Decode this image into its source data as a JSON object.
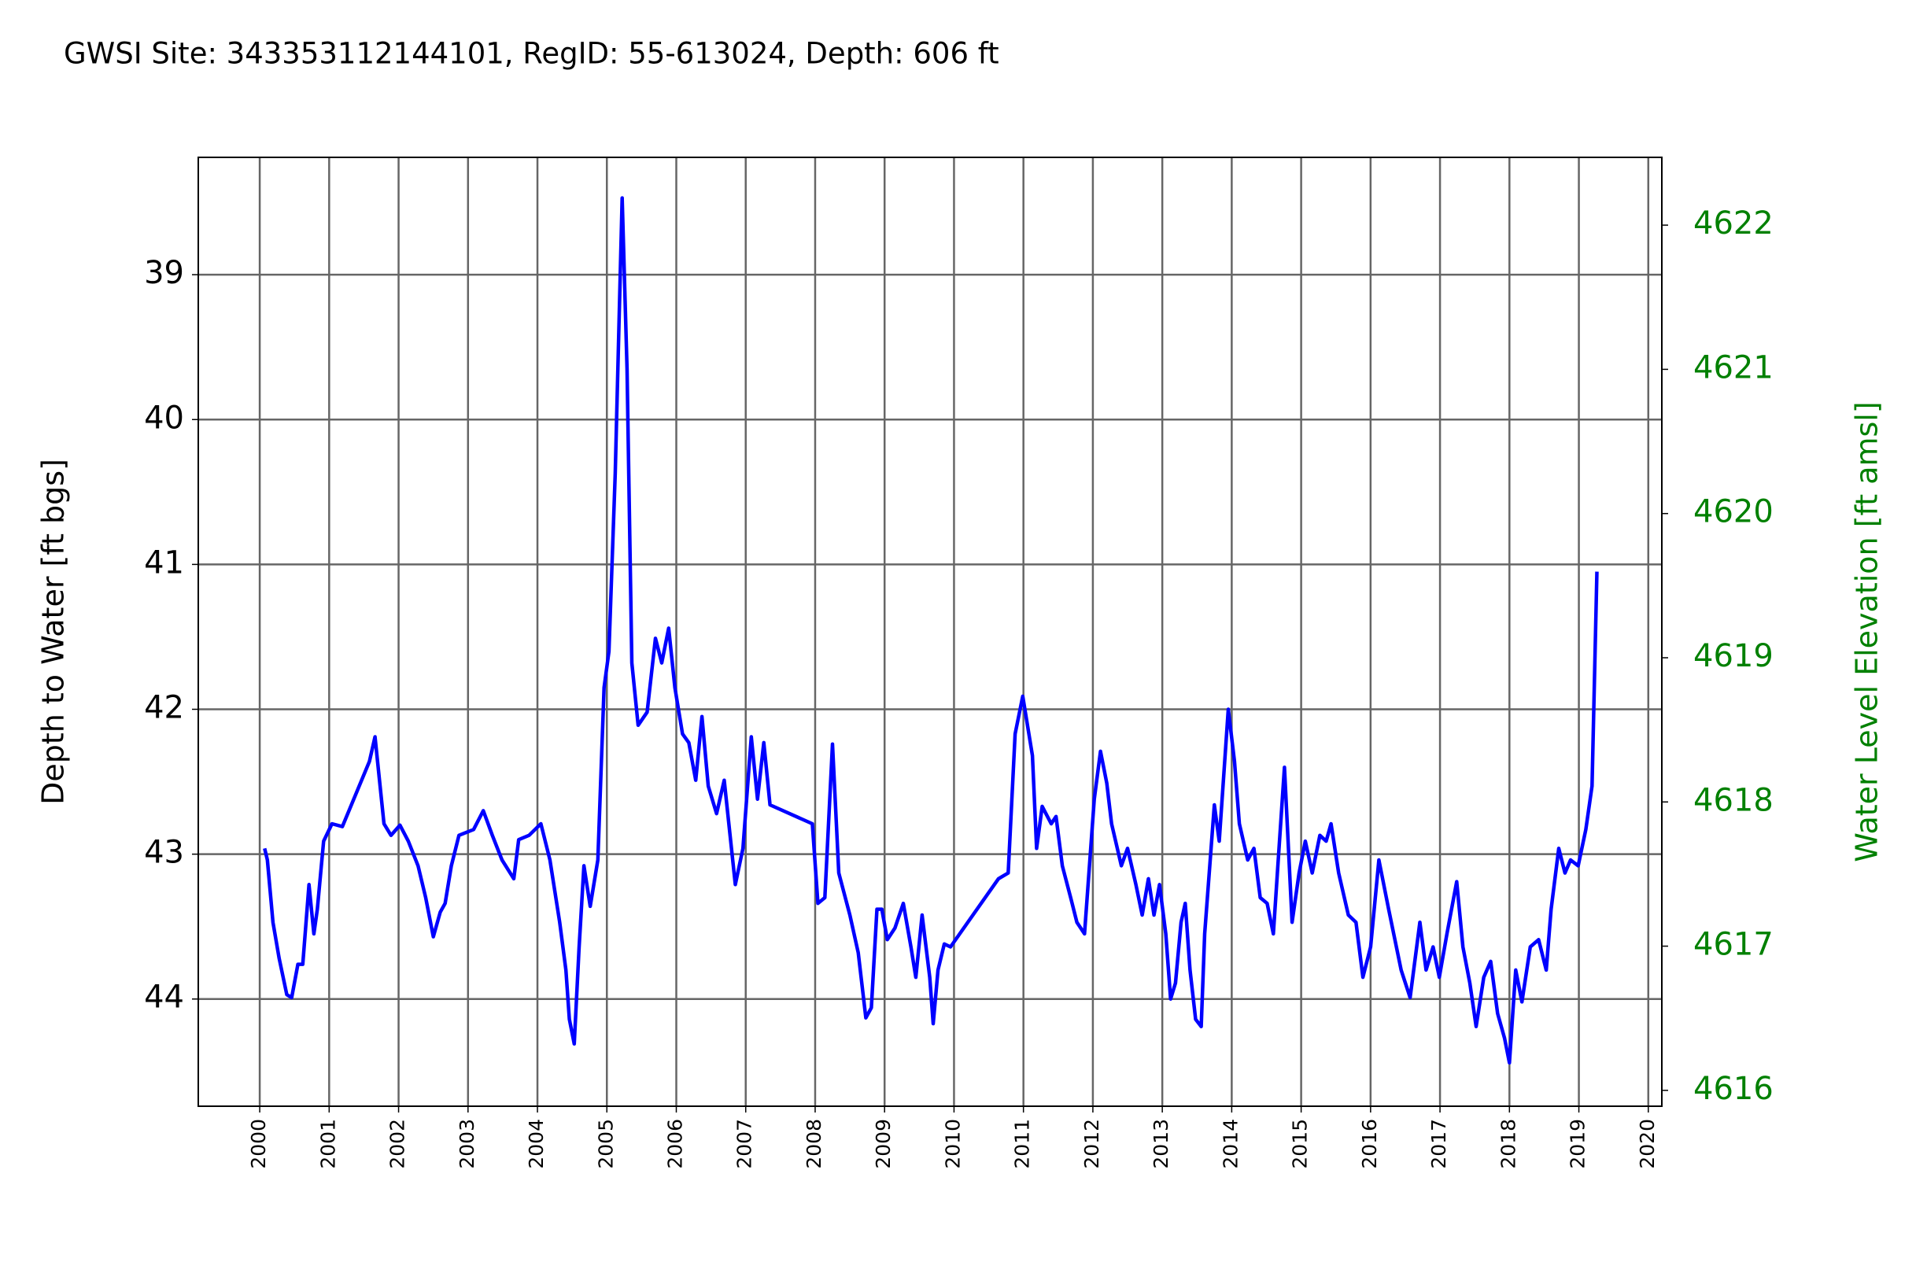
{
  "chart_data": {
    "type": "line",
    "title": "GWSI Site: 343353112144101, RegID: 55-613024, Depth: 606 ft",
    "ylabel": "Depth to Water [ft bgs]",
    "y2label": "Water Level Elevation [ft amsl]",
    "color": "#0000ff",
    "y2color": "#008000",
    "grid": true,
    "xlim": [
      1999.115,
      2020.195
    ],
    "xticks": [
      2000,
      2001,
      2002,
      2003,
      2004,
      2005,
      2006,
      2007,
      2008,
      2009,
      2010,
      2011,
      2012,
      2013,
      2014,
      2015,
      2016,
      2017,
      2018,
      2019,
      2020
    ],
    "ylim": [
      44.74,
      38.19
    ],
    "yticks": [
      39,
      40,
      41,
      42,
      43,
      44
    ],
    "y2lim": [
      4615.89,
      4622.47
    ],
    "y2ticks": [
      4616,
      4617,
      4618,
      4619,
      4620,
      4621,
      4622
    ],
    "x": [
      2000.07,
      2000.11,
      2000.19,
      2000.28,
      2000.39,
      2000.46,
      2000.55,
      2000.62,
      2000.71,
      2000.78,
      2000.83,
      2000.92,
      2001.04,
      2001.19,
      2001.58,
      2001.66,
      2001.79,
      2001.89,
      2002.02,
      2002.14,
      2002.28,
      2002.39,
      2002.5,
      2002.6,
      2002.67,
      2002.76,
      2002.87,
      2003.08,
      2003.22,
      2003.35,
      2003.49,
      2003.66,
      2003.73,
      2003.88,
      2004.05,
      2004.18,
      2004.32,
      2004.41,
      2004.46,
      2004.53,
      2004.6,
      2004.67,
      2004.76,
      2004.87,
      2004.96,
      2005.03,
      2005.12,
      2005.22,
      2005.29,
      2005.36,
      2005.45,
      2005.58,
      2005.7,
      2005.79,
      2005.89,
      2005.98,
      2006.09,
      2006.18,
      2006.28,
      2006.37,
      2006.46,
      2006.58,
      2006.69,
      2006.85,
      2006.96,
      2007.08,
      2007.17,
      2007.26,
      2007.35,
      2007.96,
      2008.04,
      2008.14,
      2008.25,
      2008.34,
      2008.5,
      2008.62,
      2008.73,
      2008.81,
      2008.89,
      2008.96,
      2009.04,
      2009.15,
      2009.27,
      2009.38,
      2009.45,
      2009.54,
      2009.65,
      2009.7,
      2009.77,
      2009.86,
      2009.95,
      2010.64,
      2010.78,
      2010.88,
      2010.99,
      2011.13,
      2011.19,
      2011.27,
      2011.4,
      2011.47,
      2011.56,
      2011.68,
      2011.77,
      2011.88,
      2012.02,
      2012.11,
      2012.2,
      2012.27,
      2012.41,
      2012.5,
      2012.62,
      2012.71,
      2012.8,
      2012.88,
      2012.96,
      2013.05,
      2013.12,
      2013.19,
      2013.27,
      2013.33,
      2013.4,
      2013.48,
      2013.56,
      2013.61,
      2013.75,
      2013.82,
      2013.95,
      2014.04,
      2014.11,
      2014.23,
      2014.32,
      2014.41,
      2014.51,
      2014.6,
      2014.67,
      2014.76,
      2014.87,
      2014.97,
      2015.06,
      2015.16,
      2015.27,
      2015.36,
      2015.43,
      2015.54,
      2015.68,
      2015.79,
      2015.89,
      2016.0,
      2016.12,
      2016.26,
      2016.44,
      2016.57,
      2016.71,
      2016.8,
      2016.9,
      2016.99,
      2017.1,
      2017.24,
      2017.33,
      2017.43,
      2017.52,
      2017.63,
      2017.73,
      2017.83,
      2017.93,
      2018.0,
      2018.09,
      2018.18,
      2018.3,
      2018.42,
      2018.53,
      2018.6,
      2018.71,
      2018.8,
      2018.88,
      2018.99,
      2019.1,
      2019.19,
      2019.26
    ],
    "values": [
      42.96,
      43.04,
      43.47,
      43.72,
      43.97,
      43.99,
      43.76,
      43.76,
      43.21,
      43.55,
      43.38,
      42.91,
      42.79,
      42.81,
      42.36,
      42.19,
      42.79,
      42.87,
      42.8,
      42.91,
      43.08,
      43.3,
      43.57,
      43.4,
      43.34,
      43.08,
      42.87,
      42.83,
      42.7,
      42.87,
      43.04,
      43.17,
      42.9,
      42.87,
      42.79,
      43.04,
      43.47,
      43.8,
      44.14,
      44.31,
      43.64,
      43.08,
      43.36,
      43.04,
      41.85,
      41.6,
      40.37,
      38.47,
      39.65,
      41.68,
      42.11,
      42.02,
      41.51,
      41.68,
      41.44,
      41.85,
      42.17,
      42.23,
      42.49,
      42.05,
      42.53,
      42.72,
      42.49,
      43.21,
      42.96,
      42.19,
      42.62,
      42.23,
      42.66,
      42.79,
      43.34,
      43.3,
      42.24,
      43.13,
      43.42,
      43.68,
      44.13,
      44.06,
      43.38,
      43.38,
      43.59,
      43.51,
      43.34,
      43.64,
      43.85,
      43.42,
      43.85,
      44.17,
      43.8,
      43.62,
      43.64,
      43.17,
      43.13,
      42.17,
      41.91,
      42.32,
      42.96,
      42.67,
      42.79,
      42.74,
      43.08,
      43.3,
      43.47,
      43.55,
      42.62,
      42.29,
      42.51,
      42.79,
      43.08,
      42.96,
      43.21,
      43.42,
      43.17,
      43.42,
      43.21,
      43.55,
      44.0,
      43.89,
      43.47,
      43.34,
      43.8,
      44.14,
      44.19,
      43.55,
      42.66,
      42.91,
      42.0,
      42.36,
      42.79,
      43.04,
      42.96,
      43.3,
      43.34,
      43.55,
      43.04,
      42.4,
      43.47,
      43.13,
      42.91,
      43.13,
      42.87,
      42.91,
      42.79,
      43.13,
      43.42,
      43.47,
      43.85,
      43.64,
      43.04,
      43.38,
      43.8,
      43.99,
      43.47,
      43.8,
      43.64,
      43.85,
      43.55,
      43.19,
      43.64,
      43.89,
      44.19,
      43.85,
      43.74,
      44.1,
      44.27,
      44.44,
      43.8,
      44.02,
      43.64,
      43.59,
      43.8,
      43.38,
      42.96,
      43.13,
      43.04,
      43.08,
      42.83,
      42.53,
      41.05
    ]
  }
}
